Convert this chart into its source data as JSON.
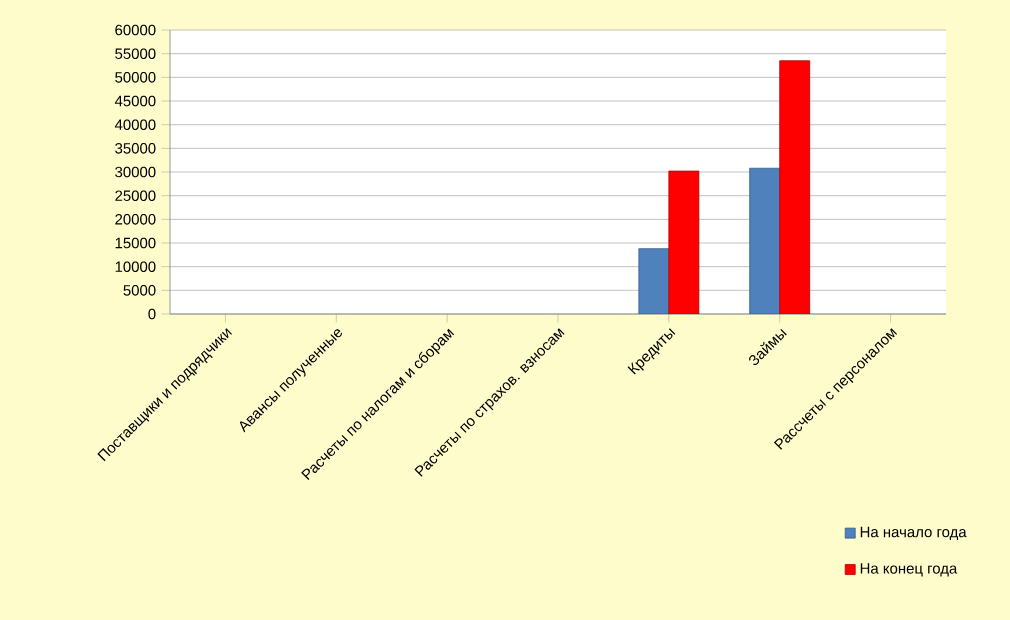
{
  "chart_data": {
    "type": "bar",
    "categories": [
      "Поставщики и подрядчики",
      "Авансы полученные",
      "Расчеты по налогам и сборам",
      "Расчеты по страхов. взносам",
      "Кредиты",
      "Займы",
      "Рассчеты с персоналом"
    ],
    "series": [
      {
        "name": "На начало года",
        "color": "#4f81bd",
        "values": [
          null,
          null,
          null,
          null,
          13800,
          30800,
          null
        ]
      },
      {
        "name": "На конец года",
        "color": "#ff0000",
        "values": [
          null,
          null,
          null,
          null,
          30200,
          53500,
          null
        ]
      }
    ],
    "ylim": [
      0,
      60000
    ],
    "yticks": [
      0,
      5000,
      10000,
      15000,
      20000,
      25000,
      30000,
      35000,
      40000,
      45000,
      50000,
      55000,
      60000
    ],
    "grid": "y",
    "legend": "bottom right"
  }
}
